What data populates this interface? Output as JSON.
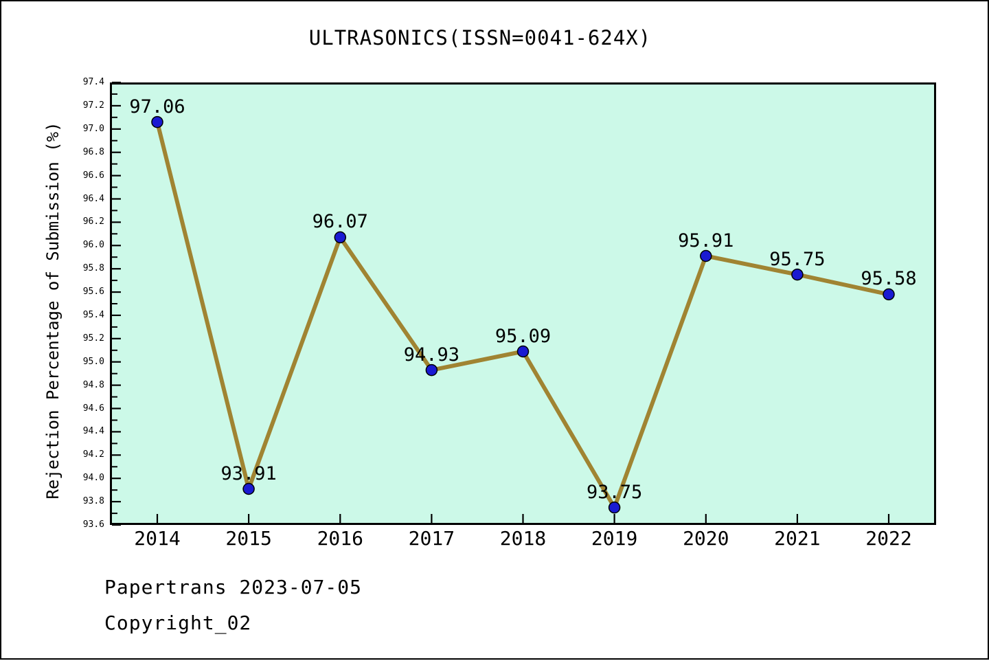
{
  "chart_data": {
    "type": "line",
    "title": "ULTRASONICS(ISSN=0041-624X)",
    "xlabel": "",
    "ylabel": "Rejection Percentage of Submission (%)",
    "categories": [
      "2014",
      "2015",
      "2016",
      "2017",
      "2018",
      "2019",
      "2020",
      "2021",
      "2022"
    ],
    "values": [
      97.06,
      93.91,
      96.07,
      94.93,
      95.09,
      93.75,
      95.91,
      95.75,
      95.58
    ],
    "point_labels": [
      "97.06",
      "93.91",
      "96.07",
      "94.93",
      "95.09",
      "93.75",
      "95.91",
      "95.75",
      "95.58"
    ],
    "ylim": [
      93.6,
      97.4
    ],
    "ytick_major": 0.2,
    "ytick_minor": 0.1,
    "grid": false,
    "legend": "none",
    "marker": "circle",
    "colors": {
      "line": "#A08432",
      "marker_fill": "#1A1AD2",
      "marker_edge": "#000000",
      "plot_bg": "#CCF9E8",
      "figure_bg": "#FFFFFF",
      "text": "#000000",
      "axis": "#000000"
    }
  },
  "footer": {
    "line1": "Papertrans 2023-07-05",
    "line2": "Copyright_02"
  }
}
